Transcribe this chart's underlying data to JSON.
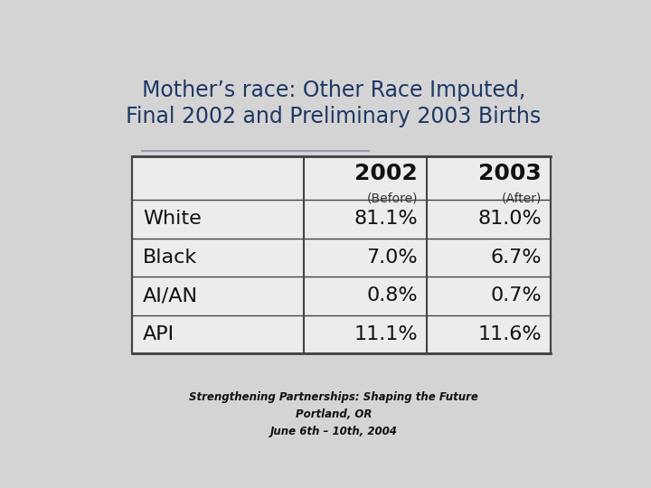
{
  "title_line1": "Mother’s race: Other Race Imputed,",
  "title_line2": "Final 2002 and Preliminary 2003 Births",
  "title_color": "#1f3864",
  "bg_color": "#d4d4d4",
  "table_bg": "#ececec",
  "rows": [
    "White",
    "Black",
    "AI/AN",
    "API"
  ],
  "col1_header": "2002",
  "col1_sub": "(Before)",
  "col2_header": "2003",
  "col2_sub": "(After)",
  "col1_values": [
    "81.1%",
    "7.0%",
    "0.8%",
    "11.1%"
  ],
  "col2_values": [
    "81.0%",
    "6.7%",
    "0.7%",
    "11.6%"
  ],
  "footer_text": "Strengthening Partnerships: Shaping the Future\nPortland, OR\nJune 6th – 10th, 2004"
}
